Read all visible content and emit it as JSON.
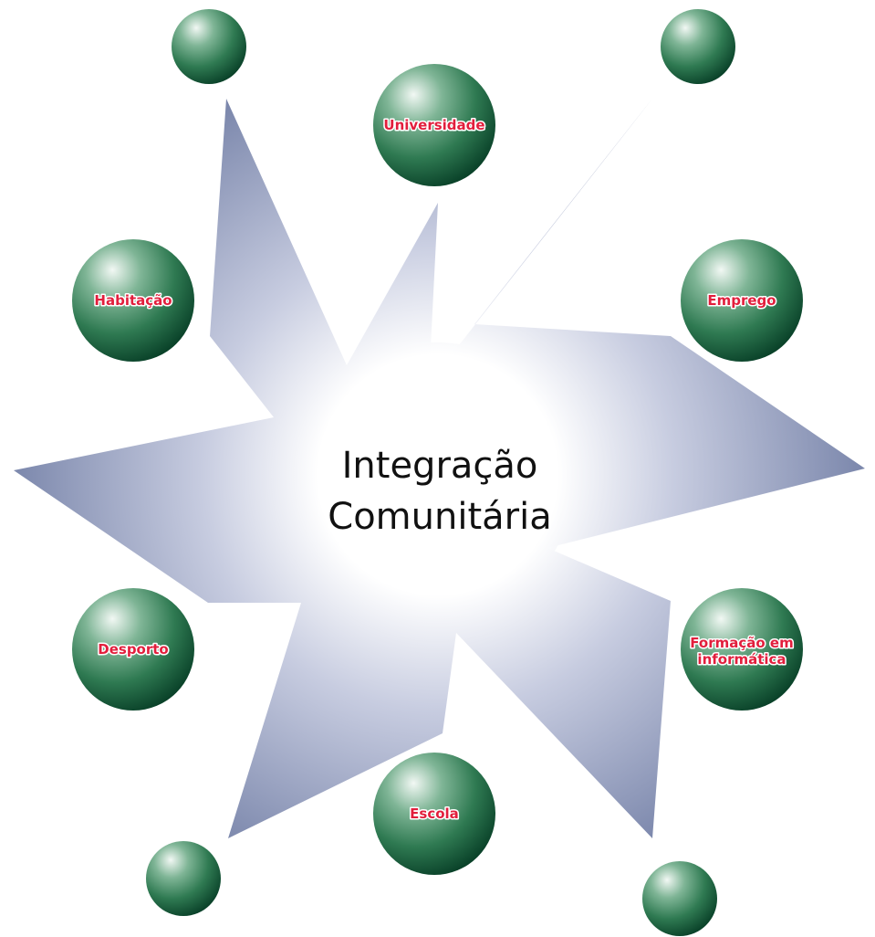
{
  "center": {
    "line1": "Integração",
    "line2": "Comunitária"
  },
  "nodes": [
    {
      "id": "universidade",
      "label_lines": [
        "Universidade"
      ]
    },
    {
      "id": "emprego",
      "label_lines": [
        "Emprego"
      ]
    },
    {
      "id": "formacao",
      "label_lines": [
        "Formação em",
        "informática"
      ]
    },
    {
      "id": "escola",
      "label_lines": [
        "Escola"
      ]
    },
    {
      "id": "desporto",
      "label_lines": [
        "Desporto"
      ]
    },
    {
      "id": "habitacao",
      "label_lines": [
        "Habitação"
      ]
    }
  ],
  "colors": {
    "sphere_dark": "#0c4a30",
    "sphere_mid": "#3d8a62",
    "sphere_light": "#e8f3ec",
    "star_edge": "#7a86ab",
    "star_center": "#ffffff",
    "label_red": "#e21e3c",
    "center_text": "#111111"
  }
}
